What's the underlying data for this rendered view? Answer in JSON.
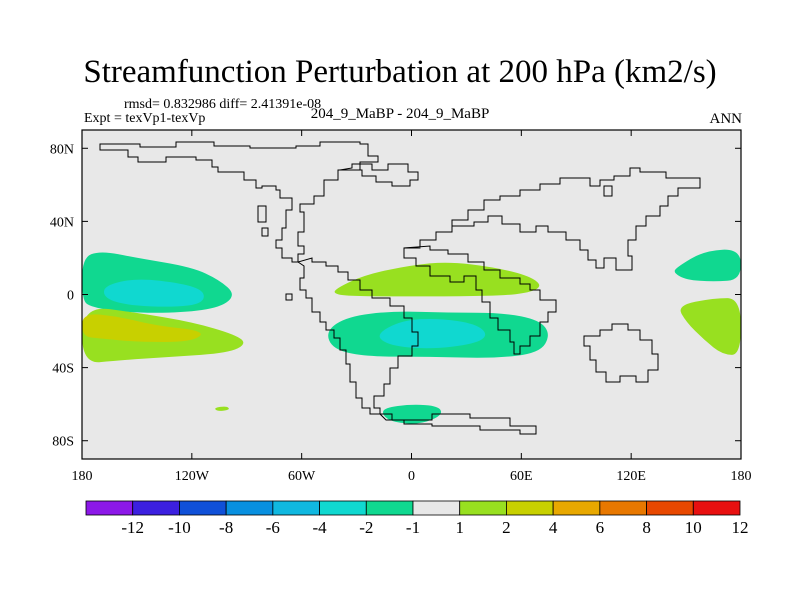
{
  "header": {
    "title": "Streamfunction Perturbation at 200 hPa (km2/s)",
    "stats": "rmsd= 0.832986 diff= 2.41391e-08",
    "experiment": "Expt = texVp1-texVp",
    "case": "204_9_MaBP - 204_9_MaBP",
    "season": "ANN"
  },
  "chart_data": {
    "type": "contour-map",
    "title": "Streamfunction Perturbation at 200 hPa (km2/s)",
    "xlim": [
      -180,
      180
    ],
    "ylim": [
      -90,
      90
    ],
    "x_ticks": [
      {
        "value": -180,
        "label": "180"
      },
      {
        "value": -120,
        "label": "120W"
      },
      {
        "value": -60,
        "label": "60W"
      },
      {
        "value": 0,
        "label": "0"
      },
      {
        "value": 60,
        "label": "60E"
      },
      {
        "value": 120,
        "label": "120E"
      },
      {
        "value": 180,
        "label": "180"
      }
    ],
    "y_ticks": [
      {
        "value": 80,
        "label": "80N"
      },
      {
        "value": 40,
        "label": "40N"
      },
      {
        "value": 0,
        "label": "0"
      },
      {
        "value": -40,
        "label": "40S"
      },
      {
        "value": -80,
        "label": "80S"
      }
    ],
    "background_color": "#e8e8e8",
    "levels": [
      "-12",
      "-10",
      "-8",
      "-6",
      "-4",
      "-2",
      "-1",
      "1",
      "2",
      "4",
      "6",
      "8",
      "10",
      "12"
    ],
    "colorbar_colors": [
      "#8c18e8",
      "#3c20e0",
      "#1050d8",
      "#0890e0",
      "#10b8e0",
      "#10d8d0",
      "#10d890",
      "#e8e8e8",
      "#98e020",
      "#c8d000",
      "#e8a800",
      "#e87800",
      "#e84800",
      "#e81010"
    ],
    "regions": [
      {
        "name": "eastern-pacific-tropical-negative",
        "level": "-2",
        "color": "#10d890",
        "polygon": [
          [
            -180,
            20
          ],
          [
            -170,
            24
          ],
          [
            -150,
            20
          ],
          [
            -120,
            15
          ],
          [
            -105,
            8
          ],
          [
            -96,
            0
          ],
          [
            -104,
            -7
          ],
          [
            -125,
            -10
          ],
          [
            -155,
            -10
          ],
          [
            -175,
            -7
          ],
          [
            -180,
            -3
          ]
        ]
      },
      {
        "name": "eastern-pacific-core-negative",
        "level": "-4",
        "color": "#10d8d0",
        "polygon": [
          [
            -168,
            5
          ],
          [
            -150,
            9
          ],
          [
            -125,
            6
          ],
          [
            -113,
            2
          ],
          [
            -114,
            -5
          ],
          [
            -130,
            -7
          ],
          [
            -155,
            -6
          ],
          [
            -168,
            -2
          ]
        ]
      },
      {
        "name": "south-pacific-positive",
        "level": "2",
        "color": "#98e020",
        "polygon": [
          [
            -180,
            -6
          ],
          [
            -150,
            -10
          ],
          [
            -120,
            -15
          ],
          [
            -96,
            -22
          ],
          [
            -90,
            -27
          ],
          [
            -100,
            -32
          ],
          [
            -130,
            -34
          ],
          [
            -160,
            -36
          ],
          [
            -180,
            -38
          ]
        ]
      },
      {
        "name": "south-pacific-core-positive",
        "level": "4",
        "color": "#c8d000",
        "polygon": [
          [
            -180,
            -10
          ],
          [
            -160,
            -12
          ],
          [
            -140,
            -17
          ],
          [
            -112,
            -20
          ],
          [
            -120,
            -26
          ],
          [
            -150,
            -26
          ],
          [
            -170,
            -24
          ],
          [
            -180,
            -23
          ]
        ]
      },
      {
        "name": "north-africa-positive",
        "level": "2",
        "color": "#98e020",
        "polygon": [
          [
            -42,
            3
          ],
          [
            -25,
            11
          ],
          [
            0,
            16
          ],
          [
            20,
            18
          ],
          [
            45,
            15
          ],
          [
            65,
            10
          ],
          [
            72,
            4
          ],
          [
            60,
            0
          ],
          [
            35,
            -1
          ],
          [
            0,
            -1
          ],
          [
            -30,
            -1
          ],
          [
            -42,
            0
          ]
        ]
      },
      {
        "name": "south-atlantic-negative",
        "level": "-2",
        "color": "#10d890",
        "polygon": [
          [
            -47,
            -20
          ],
          [
            -35,
            -12
          ],
          [
            -10,
            -9
          ],
          [
            20,
            -10
          ],
          [
            50,
            -10
          ],
          [
            70,
            -14
          ],
          [
            76,
            -22
          ],
          [
            70,
            -32
          ],
          [
            45,
            -35
          ],
          [
            10,
            -34
          ],
          [
            -25,
            -34
          ],
          [
            -43,
            -30
          ]
        ]
      },
      {
        "name": "south-atlantic-core-negative",
        "level": "-4",
        "color": "#10d8d0",
        "polygon": [
          [
            -20,
            -22
          ],
          [
            -5,
            -14
          ],
          [
            15,
            -13
          ],
          [
            35,
            -16
          ],
          [
            42,
            -22
          ],
          [
            35,
            -27
          ],
          [
            10,
            -30
          ],
          [
            -12,
            -28
          ]
        ]
      },
      {
        "name": "west-pacific-negative",
        "level": "-2",
        "color": "#10d890",
        "polygon": [
          [
            145,
            15
          ],
          [
            160,
            24
          ],
          [
            180,
            25
          ],
          [
            180,
            8
          ],
          [
            165,
            7
          ],
          [
            150,
            8
          ],
          [
            143,
            12
          ]
        ]
      },
      {
        "name": "west-pacific-positive",
        "level": "2",
        "color": "#98e020",
        "polygon": [
          [
            145,
            -6
          ],
          [
            165,
            -2
          ],
          [
            180,
            -2
          ],
          [
            180,
            -33
          ],
          [
            170,
            -33
          ],
          [
            160,
            -25
          ],
          [
            150,
            -15
          ]
        ]
      },
      {
        "name": "antarctic-peninsula-negative",
        "level": "-2",
        "color": "#10d890",
        "polygon": [
          [
            -15,
            -62
          ],
          [
            0,
            -60
          ],
          [
            15,
            -61
          ],
          [
            17,
            -66
          ],
          [
            5,
            -71
          ],
          [
            -10,
            -70
          ],
          [
            -16,
            -66
          ]
        ]
      },
      {
        "name": "small-positive-spot",
        "level": "2",
        "color": "#98e020",
        "polygon": [
          [
            -108,
            -62
          ],
          [
            -101,
            -61
          ],
          [
            -99,
            -63
          ],
          [
            -106,
            -64
          ]
        ]
      }
    ]
  }
}
